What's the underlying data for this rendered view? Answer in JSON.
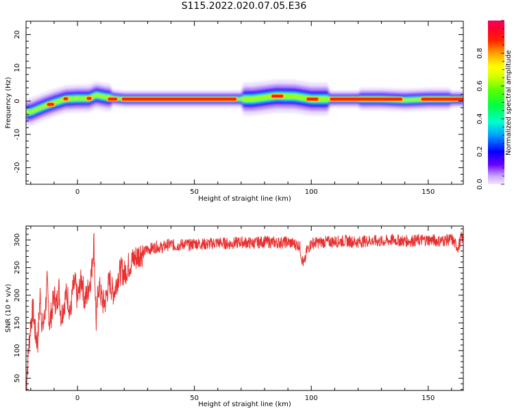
{
  "title": "S115.2022.020.07.05.E36",
  "chart_data": [
    {
      "type": "heatmap",
      "xlabel": "Height of straight line (km)",
      "ylabel": "Frequency (Hz)",
      "xlim": [
        -22,
        165
      ],
      "ylim": [
        -25,
        24
      ],
      "xticks": [
        0,
        50,
        100,
        150
      ],
      "yticks": [
        20,
        10,
        0,
        -10,
        -20
      ],
      "colorbar": {
        "label": "Normalized spectral amplitude",
        "range": [
          0,
          1
        ],
        "ticks": [
          0.0,
          0.2,
          0.4,
          0.6,
          0.8
        ],
        "tick_labels": [
          "0.0",
          "0.2",
          "0.4",
          "0.6",
          "0.8"
        ]
      },
      "ridge": [
        {
          "x": -20,
          "f": -3.3
        },
        {
          "x": -15,
          "f": -1.8
        },
        {
          "x": -10,
          "f": -0.5
        },
        {
          "x": -5,
          "f": 0.6
        },
        {
          "x": 0,
          "f": 0.8
        },
        {
          "x": 5,
          "f": 0.8
        },
        {
          "x": 8,
          "f": 1.8
        },
        {
          "x": 12,
          "f": 1.2
        },
        {
          "x": 20,
          "f": 0.6
        },
        {
          "x": 40,
          "f": 0.6
        },
        {
          "x": 60,
          "f": 0.6
        },
        {
          "x": 75,
          "f": 0.6
        },
        {
          "x": 85,
          "f": 1.5
        },
        {
          "x": 93,
          "f": 1.4
        },
        {
          "x": 100,
          "f": 0.6
        },
        {
          "x": 110,
          "f": 0.6
        },
        {
          "x": 130,
          "f": 0.6
        },
        {
          "x": 140,
          "f": 0.3
        },
        {
          "x": 150,
          "f": 0.6
        },
        {
          "x": 165,
          "f": 0.6
        }
      ],
      "peak_segments": [
        {
          "x0": -13,
          "x1": -10,
          "f": -1.0
        },
        {
          "x0": -6,
          "x1": -4,
          "f": 0.7
        },
        {
          "x0": 4,
          "x1": 6,
          "f": 0.8
        },
        {
          "x0": 13,
          "x1": 17,
          "f": 0.6
        },
        {
          "x0": 19,
          "x1": 68,
          "f": 0.6
        },
        {
          "x0": 83,
          "x1": 88,
          "f": 1.5
        },
        {
          "x0": 98,
          "x1": 103,
          "f": 0.6
        },
        {
          "x0": 108,
          "x1": 139,
          "f": 0.6
        },
        {
          "x0": 147,
          "x1": 165,
          "f": 0.6
        }
      ]
    },
    {
      "type": "line",
      "xlabel": "Height of straight line (km)",
      "ylabel": "SNR (10 * v/v)",
      "xlim": [
        -22,
        165
      ],
      "ylim": [
        28,
        325
      ],
      "xticks": [
        0,
        50,
        100,
        150
      ],
      "yticks": [
        50,
        100,
        150,
        200,
        250,
        300
      ],
      "color": "#e83030",
      "series": [
        {
          "x": [
            -22,
            -21,
            -20,
            -19,
            -18,
            -17,
            -16,
            -15,
            -14,
            -13,
            -12,
            -11,
            -10,
            -9,
            -8,
            -7,
            -6,
            -5,
            -4,
            -3,
            -2,
            -1,
            0,
            1,
            2,
            3,
            4,
            5,
            6,
            7,
            8,
            9,
            10,
            11,
            12,
            13,
            14,
            15,
            16,
            17,
            18,
            19,
            20,
            21,
            22,
            23,
            24,
            25,
            26,
            27,
            28,
            29,
            30,
            32,
            34,
            36,
            38,
            40,
            42,
            44,
            46,
            48,
            50,
            55,
            60,
            65,
            70,
            75,
            80,
            85,
            90,
            95,
            96,
            97,
            98,
            100,
            105,
            110,
            115,
            120,
            125,
            130,
            135,
            140,
            145,
            150,
            155,
            160,
            162,
            163,
            164,
            165
          ],
          "y": [
            35,
            95,
            150,
            175,
            130,
            115,
            200,
            140,
            160,
            220,
            150,
            170,
            200,
            180,
            215,
            160,
            180,
            200,
            195,
            165,
            210,
            220,
            190,
            215,
            230,
            190,
            200,
            220,
            240,
            300,
            150,
            220,
            200,
            185,
            190,
            215,
            225,
            205,
            210,
            230,
            240,
            245,
            238,
            248,
            255,
            260,
            265,
            268,
            272,
            278,
            275,
            280,
            283,
            285,
            288,
            286,
            290,
            292,
            289,
            291,
            293,
            290,
            294,
            292,
            295,
            293,
            296,
            294,
            297,
            295,
            296,
            290,
            265,
            255,
            280,
            294,
            296,
            297,
            298,
            296,
            299,
            297,
            300,
            298,
            299,
            300,
            298,
            301,
            290,
            285,
            305,
            300
          ]
        }
      ]
    }
  ]
}
